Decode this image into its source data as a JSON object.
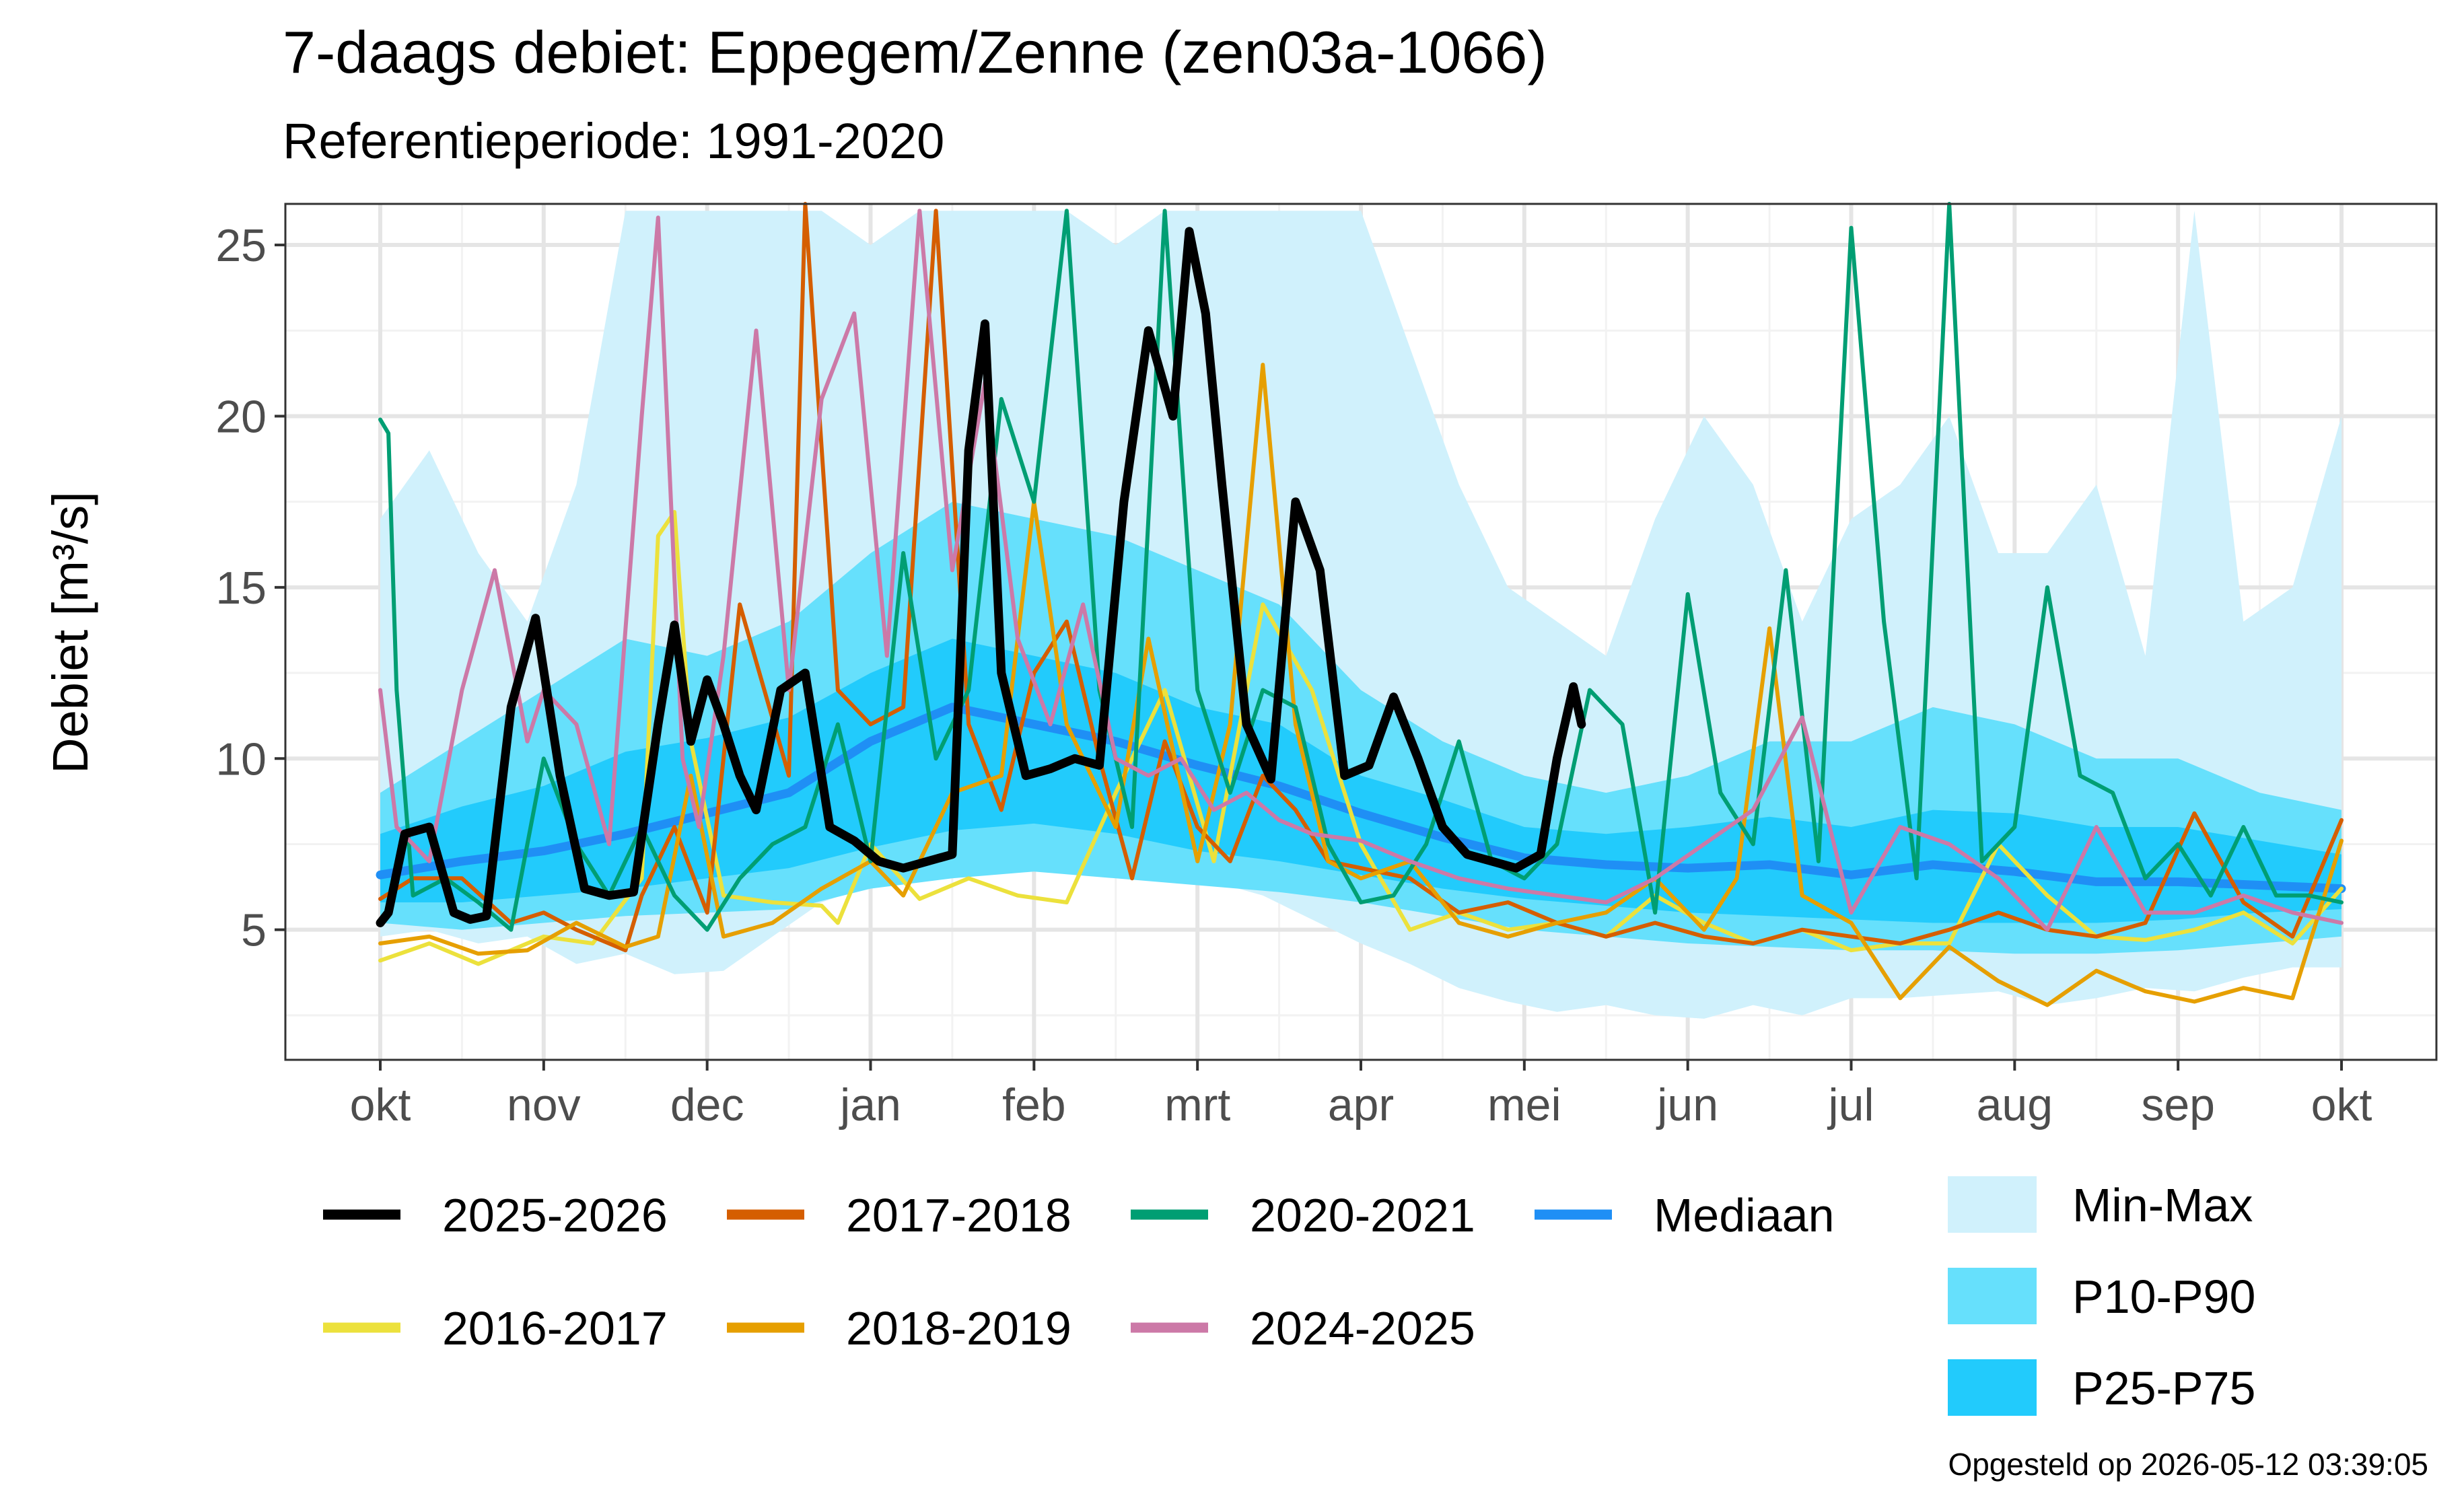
{
  "chart_data": {
    "type": "line",
    "title": "7-daags debiet: Eppegem/Zenne (zen03a-1066)",
    "subtitle": "Referentieperiode: 1991-2020",
    "ylabel": "Debiet [m³/s]",
    "xlabel": "",
    "ylim": [
      1.2,
      26.2
    ],
    "yticks": [
      5,
      10,
      15,
      20,
      25
    ],
    "x_range_months": [
      0,
      12
    ],
    "xticks": [
      "okt",
      "nov",
      "dec",
      "jan",
      "feb",
      "mrt",
      "apr",
      "mei",
      "jun",
      "jul",
      "aug",
      "sep",
      "okt"
    ],
    "grid": true,
    "footer": "Opgesteld op 2026-05-12 03:39:05",
    "bands": [
      {
        "name": "Min-Max",
        "color": "#d0f1fc",
        "x": [
          0,
          0.3,
          0.6,
          0.9,
          1.2,
          1.5,
          1.8,
          2.1,
          2.4,
          2.7,
          3.0,
          3.3,
          3.6,
          3.9,
          4.2,
          4.5,
          4.8,
          5.1,
          5.4,
          5.7,
          6.0,
          6.3,
          6.6,
          6.9,
          7.2,
          7.5,
          7.8,
          8.1,
          8.4,
          8.7,
          9.0,
          9.3,
          9.6,
          9.9,
          10.2,
          10.5,
          10.8,
          11.1,
          11.4,
          11.7,
          12.0
        ],
        "upper": [
          17,
          19,
          16,
          14,
          18,
          26,
          26,
          26,
          26,
          26,
          25,
          26,
          26,
          26,
          26,
          25,
          26,
          26,
          26,
          26,
          26,
          22,
          18,
          15,
          14,
          13,
          17,
          20,
          18,
          14,
          17,
          18,
          20,
          16,
          16,
          18,
          13,
          26,
          14,
          15,
          20
        ],
        "lower": [
          4.8,
          5.0,
          4.6,
          4.8,
          4.0,
          4.3,
          3.7,
          3.8,
          4.8,
          5.8,
          6.3,
          6.6,
          6.8,
          6.8,
          6.7,
          6.7,
          6.6,
          6.4,
          6.0,
          5.3,
          4.6,
          4.0,
          3.3,
          2.9,
          2.6,
          2.8,
          2.5,
          2.4,
          2.8,
          2.5,
          3.0,
          3.0,
          3.1,
          3.2,
          2.8,
          3.0,
          3.3,
          3.2,
          3.6,
          3.9,
          3.9
        ]
      },
      {
        "name": "P10-P90",
        "color": "#66e0fc",
        "x": [
          0,
          0.5,
          1.0,
          1.5,
          2.0,
          2.5,
          3.0,
          3.5,
          4.0,
          4.5,
          5.0,
          5.5,
          6.0,
          6.5,
          7.0,
          7.5,
          8.0,
          8.5,
          9.0,
          9.5,
          10.0,
          10.5,
          11.0,
          11.5,
          12.0
        ],
        "upper": [
          9.0,
          10.5,
          12.0,
          13.5,
          13.0,
          14.0,
          16.0,
          17.5,
          17.0,
          16.5,
          15.5,
          14.5,
          12.0,
          10.5,
          9.5,
          9.0,
          9.5,
          10.5,
          10.5,
          11.5,
          11.0,
          10.0,
          10.0,
          9.0,
          8.5
        ],
        "lower": [
          5.2,
          5.0,
          5.2,
          5.4,
          5.5,
          5.6,
          6.2,
          6.5,
          6.7,
          6.5,
          6.3,
          6.1,
          5.8,
          5.4,
          5.0,
          4.8,
          4.6,
          4.5,
          4.4,
          4.4,
          4.3,
          4.3,
          4.4,
          4.6,
          4.8
        ]
      },
      {
        "name": "P25-P75",
        "color": "#22cbfc",
        "x": [
          0,
          0.5,
          1.0,
          1.5,
          2.0,
          2.5,
          3.0,
          3.5,
          4.0,
          4.5,
          5.0,
          5.5,
          6.0,
          6.5,
          7.0,
          7.5,
          8.0,
          8.5,
          9.0,
          9.5,
          10.0,
          10.5,
          11.0,
          11.5,
          12.0
        ],
        "upper": [
          7.8,
          8.6,
          9.2,
          10.2,
          10.6,
          11.2,
          12.5,
          13.5,
          13.0,
          12.5,
          11.5,
          11.0,
          9.5,
          8.8,
          8.0,
          7.8,
          8.0,
          8.3,
          8.0,
          8.5,
          8.4,
          8.0,
          8.0,
          7.6,
          7.2
        ],
        "lower": [
          5.8,
          5.8,
          6.0,
          6.2,
          6.5,
          6.8,
          7.4,
          7.9,
          8.1,
          7.8,
          7.3,
          7.0,
          6.6,
          6.2,
          5.9,
          5.7,
          5.5,
          5.4,
          5.3,
          5.2,
          5.2,
          5.2,
          5.3,
          5.5,
          5.6
        ]
      }
    ],
    "series": [
      {
        "name": "Mediaan",
        "color": "#1f8ff5",
        "width": 13,
        "x": [
          0,
          0.5,
          1.0,
          1.5,
          2.0,
          2.5,
          3.0,
          3.5,
          4.0,
          4.5,
          5.0,
          5.5,
          6.0,
          6.5,
          7.0,
          7.5,
          8.0,
          8.5,
          9.0,
          9.5,
          10.0,
          10.5,
          11.0,
          11.5,
          12.0
        ],
        "y": [
          6.6,
          7.0,
          7.3,
          7.8,
          8.4,
          9.0,
          10.5,
          11.5,
          11.0,
          10.5,
          9.8,
          9.2,
          8.4,
          7.7,
          7.1,
          6.9,
          6.8,
          6.9,
          6.6,
          6.9,
          6.7,
          6.4,
          6.4,
          6.3,
          6.2
        ]
      },
      {
        "name": "2016-2017",
        "color": "#ece13c",
        "width": 6,
        "x": [
          0,
          0.3,
          0.6,
          1.0,
          1.3,
          1.6,
          1.7,
          1.8,
          1.9,
          2.1,
          2.4,
          2.7,
          2.8,
          3.0,
          3.3,
          3.6,
          3.9,
          4.2,
          4.5,
          4.8,
          5.1,
          5.4,
          5.7,
          6.0,
          6.3,
          6.6,
          6.9,
          7.2,
          7.5,
          7.8,
          8.1,
          8.4,
          8.7,
          9.0,
          9.3,
          9.6,
          9.9,
          10.2,
          10.5,
          10.8,
          11.1,
          11.4,
          11.7,
          12.0
        ],
        "y": [
          4.1,
          4.6,
          4.0,
          4.8,
          4.6,
          6.5,
          16.5,
          17.2,
          10.5,
          6.0,
          5.8,
          5.7,
          5.2,
          7.5,
          5.9,
          6.5,
          6.0,
          5.8,
          9.0,
          12.0,
          7.0,
          14.5,
          12.0,
          7.5,
          5.0,
          5.5,
          5.0,
          5.2,
          4.8,
          6.0,
          5.2,
          4.6,
          5.0,
          4.4,
          4.6,
          4.6,
          7.5,
          6.0,
          4.8,
          4.7,
          5.0,
          5.5,
          4.6,
          6.2
        ]
      },
      {
        "name": "2017-2018",
        "color": "#d55e00",
        "width": 6,
        "x": [
          0,
          0.2,
          0.5,
          0.8,
          1.0,
          1.2,
          1.5,
          1.6,
          1.8,
          2.0,
          2.2,
          2.5,
          2.6,
          2.8,
          3.0,
          3.2,
          3.4,
          3.6,
          3.8,
          4.0,
          4.2,
          4.4,
          4.6,
          4.8,
          5.0,
          5.2,
          5.4,
          5.6,
          5.8,
          6.0,
          6.3,
          6.6,
          6.9,
          7.2,
          7.5,
          7.8,
          8.1,
          8.4,
          8.7,
          9.0,
          9.3,
          9.6,
          9.9,
          10.2,
          10.5,
          10.8,
          11.1,
          11.4,
          11.7,
          12.0
        ],
        "y": [
          5.9,
          6.5,
          6.5,
          5.2,
          5.5,
          5.0,
          4.4,
          6.0,
          8.0,
          5.5,
          14.5,
          9.5,
          26.2,
          12.0,
          11.0,
          11.5,
          26.0,
          11.0,
          8.5,
          12.5,
          14.0,
          10.0,
          6.5,
          10.5,
          8.0,
          7.0,
          9.5,
          8.5,
          7.0,
          6.8,
          6.5,
          5.5,
          5.8,
          5.2,
          4.8,
          5.2,
          4.8,
          4.6,
          5.0,
          4.8,
          4.6,
          5.0,
          5.5,
          5.0,
          4.8,
          5.2,
          8.4,
          5.8,
          4.8,
          8.2
        ]
      },
      {
        "name": "2018-2019",
        "color": "#e69f00",
        "width": 6,
        "x": [
          0,
          0.3,
          0.6,
          0.9,
          1.2,
          1.5,
          1.7,
          1.9,
          2.1,
          2.4,
          2.7,
          3.0,
          3.2,
          3.5,
          3.8,
          4.0,
          4.2,
          4.5,
          4.7,
          5.0,
          5.2,
          5.4,
          5.6,
          5.8,
          6.0,
          6.3,
          6.6,
          6.9,
          7.2,
          7.5,
          7.8,
          8.1,
          8.3,
          8.5,
          8.7,
          9.0,
          9.3,
          9.6,
          9.9,
          10.2,
          10.5,
          10.8,
          11.1,
          11.4,
          11.7,
          12.0
        ],
        "y": [
          4.6,
          4.8,
          4.3,
          4.4,
          5.2,
          4.5,
          4.8,
          9.5,
          4.8,
          5.2,
          6.2,
          7.0,
          6.0,
          9.0,
          9.5,
          17.5,
          11.0,
          8.0,
          13.5,
          7.0,
          11.0,
          21.5,
          11.0,
          7.0,
          6.5,
          7.0,
          5.2,
          4.8,
          5.2,
          5.5,
          6.5,
          5.0,
          6.5,
          13.8,
          6.0,
          5.2,
          3.0,
          4.5,
          3.5,
          2.8,
          3.8,
          3.2,
          2.9,
          3.3,
          3.0,
          7.6
        ]
      },
      {
        "name": "2020-2021",
        "color": "#009e73",
        "width": 6,
        "x": [
          0,
          0.05,
          0.1,
          0.2,
          0.4,
          0.6,
          0.8,
          1.0,
          1.2,
          1.4,
          1.6,
          1.8,
          2.0,
          2.2,
          2.4,
          2.6,
          2.8,
          3.0,
          3.2,
          3.4,
          3.6,
          3.8,
          4.0,
          4.2,
          4.4,
          4.6,
          4.8,
          5.0,
          5.2,
          5.4,
          5.6,
          5.8,
          6.0,
          6.2,
          6.4,
          6.6,
          6.8,
          7.0,
          7.2,
          7.4,
          7.6,
          7.8,
          8.0,
          8.2,
          8.4,
          8.6,
          8.8,
          9.0,
          9.2,
          9.4,
          9.6,
          9.8,
          10.0,
          10.2,
          10.4,
          10.6,
          10.8,
          11.0,
          11.2,
          11.4,
          11.6,
          11.8,
          12.0
        ],
        "y": [
          19.9,
          19.5,
          12.0,
          6.0,
          6.5,
          5.8,
          5.0,
          10.0,
          7.5,
          6.0,
          8.0,
          6.0,
          5.0,
          6.5,
          7.5,
          8.0,
          11.0,
          7.0,
          16.0,
          10.0,
          12.0,
          20.5,
          17.5,
          26.0,
          12.0,
          8.0,
          26.0,
          12.0,
          9.0,
          12.0,
          11.5,
          7.5,
          5.8,
          6.0,
          7.5,
          10.5,
          7.0,
          6.5,
          7.5,
          12.0,
          11.0,
          5.5,
          14.8,
          9.0,
          7.5,
          15.5,
          7.0,
          25.5,
          14.0,
          6.5,
          26.2,
          7.0,
          8.0,
          15.0,
          9.5,
          9.0,
          6.5,
          7.5,
          6.0,
          8.0,
          6.0,
          6.0,
          5.8
        ]
      },
      {
        "name": "2024-2025",
        "color": "#cc79a7",
        "width": 6,
        "x": [
          0,
          0.1,
          0.3,
          0.5,
          0.7,
          0.9,
          1.0,
          1.2,
          1.4,
          1.6,
          1.7,
          1.85,
          1.95,
          2.1,
          2.3,
          2.5,
          2.7,
          2.9,
          3.1,
          3.3,
          3.5,
          3.7,
          3.9,
          4.1,
          4.3,
          4.5,
          4.7,
          4.9,
          5.1,
          5.3,
          5.5,
          5.7,
          6.0,
          6.3,
          6.6,
          6.9,
          7.2,
          7.5,
          7.8,
          8.1,
          8.4,
          8.7,
          9.0,
          9.3,
          9.6,
          9.9,
          10.2,
          10.5,
          10.8,
          11.1,
          11.4,
          11.7,
          12.0
        ],
        "y": [
          12.0,
          8.0,
          7.0,
          12.0,
          15.5,
          10.5,
          12.0,
          11.0,
          7.5,
          20.0,
          25.8,
          10.0,
          8.0,
          13.0,
          22.5,
          12.0,
          20.5,
          23.0,
          13.0,
          26.0,
          15.5,
          21.0,
          13.5,
          11.0,
          14.5,
          10.0,
          9.5,
          10.0,
          8.5,
          9.0,
          8.2,
          7.8,
          7.6,
          7.0,
          6.5,
          6.2,
          6.0,
          5.8,
          6.5,
          7.5,
          8.5,
          11.2,
          5.5,
          8.0,
          7.5,
          6.5,
          5.0,
          8.0,
          5.5,
          5.5,
          6.0,
          5.5,
          5.2
        ]
      },
      {
        "name": "2025-2026",
        "color": "#000000",
        "width": 13,
        "x": [
          0,
          0.05,
          0.15,
          0.3,
          0.45,
          0.55,
          0.65,
          0.8,
          0.95,
          1.1,
          1.25,
          1.4,
          1.55,
          1.7,
          1.8,
          1.9,
          2.0,
          2.1,
          2.2,
          2.3,
          2.45,
          2.6,
          2.75,
          2.9,
          3.05,
          3.2,
          3.35,
          3.5,
          3.6,
          3.7,
          3.8,
          3.95,
          4.1,
          4.25,
          4.4,
          4.55,
          4.7,
          4.85,
          4.95,
          5.05,
          5.15,
          5.3,
          5.45,
          5.6,
          5.75,
          5.9,
          6.05,
          6.2,
          6.35,
          6.5,
          6.65,
          6.8,
          6.95,
          7.1,
          7.2,
          7.3,
          7.35
        ],
        "y": [
          5.2,
          5.5,
          7.8,
          8.0,
          5.5,
          5.3,
          5.4,
          11.5,
          14.1,
          9.5,
          6.2,
          6.0,
          6.1,
          11.0,
          13.9,
          10.5,
          12.3,
          11.0,
          9.5,
          8.5,
          12.0,
          12.5,
          8.0,
          7.6,
          7.0,
          6.8,
          7.0,
          7.2,
          19.0,
          22.7,
          12.5,
          9.5,
          9.7,
          10.0,
          9.8,
          17.5,
          22.5,
          20.0,
          25.4,
          23.0,
          18.0,
          11.0,
          9.4,
          17.5,
          15.5,
          9.5,
          9.8,
          11.8,
          10.0,
          8.0,
          7.2,
          7.0,
          6.8,
          7.2,
          10.0,
          12.1,
          11.0
        ]
      }
    ],
    "legend": {
      "lines": [
        "2025-2026",
        "2017-2018",
        "2020-2021",
        "Mediaan",
        "2016-2017",
        "2018-2019",
        "2024-2025"
      ],
      "bands": [
        "Min-Max",
        "P10-P90",
        "P25-P75"
      ]
    }
  }
}
